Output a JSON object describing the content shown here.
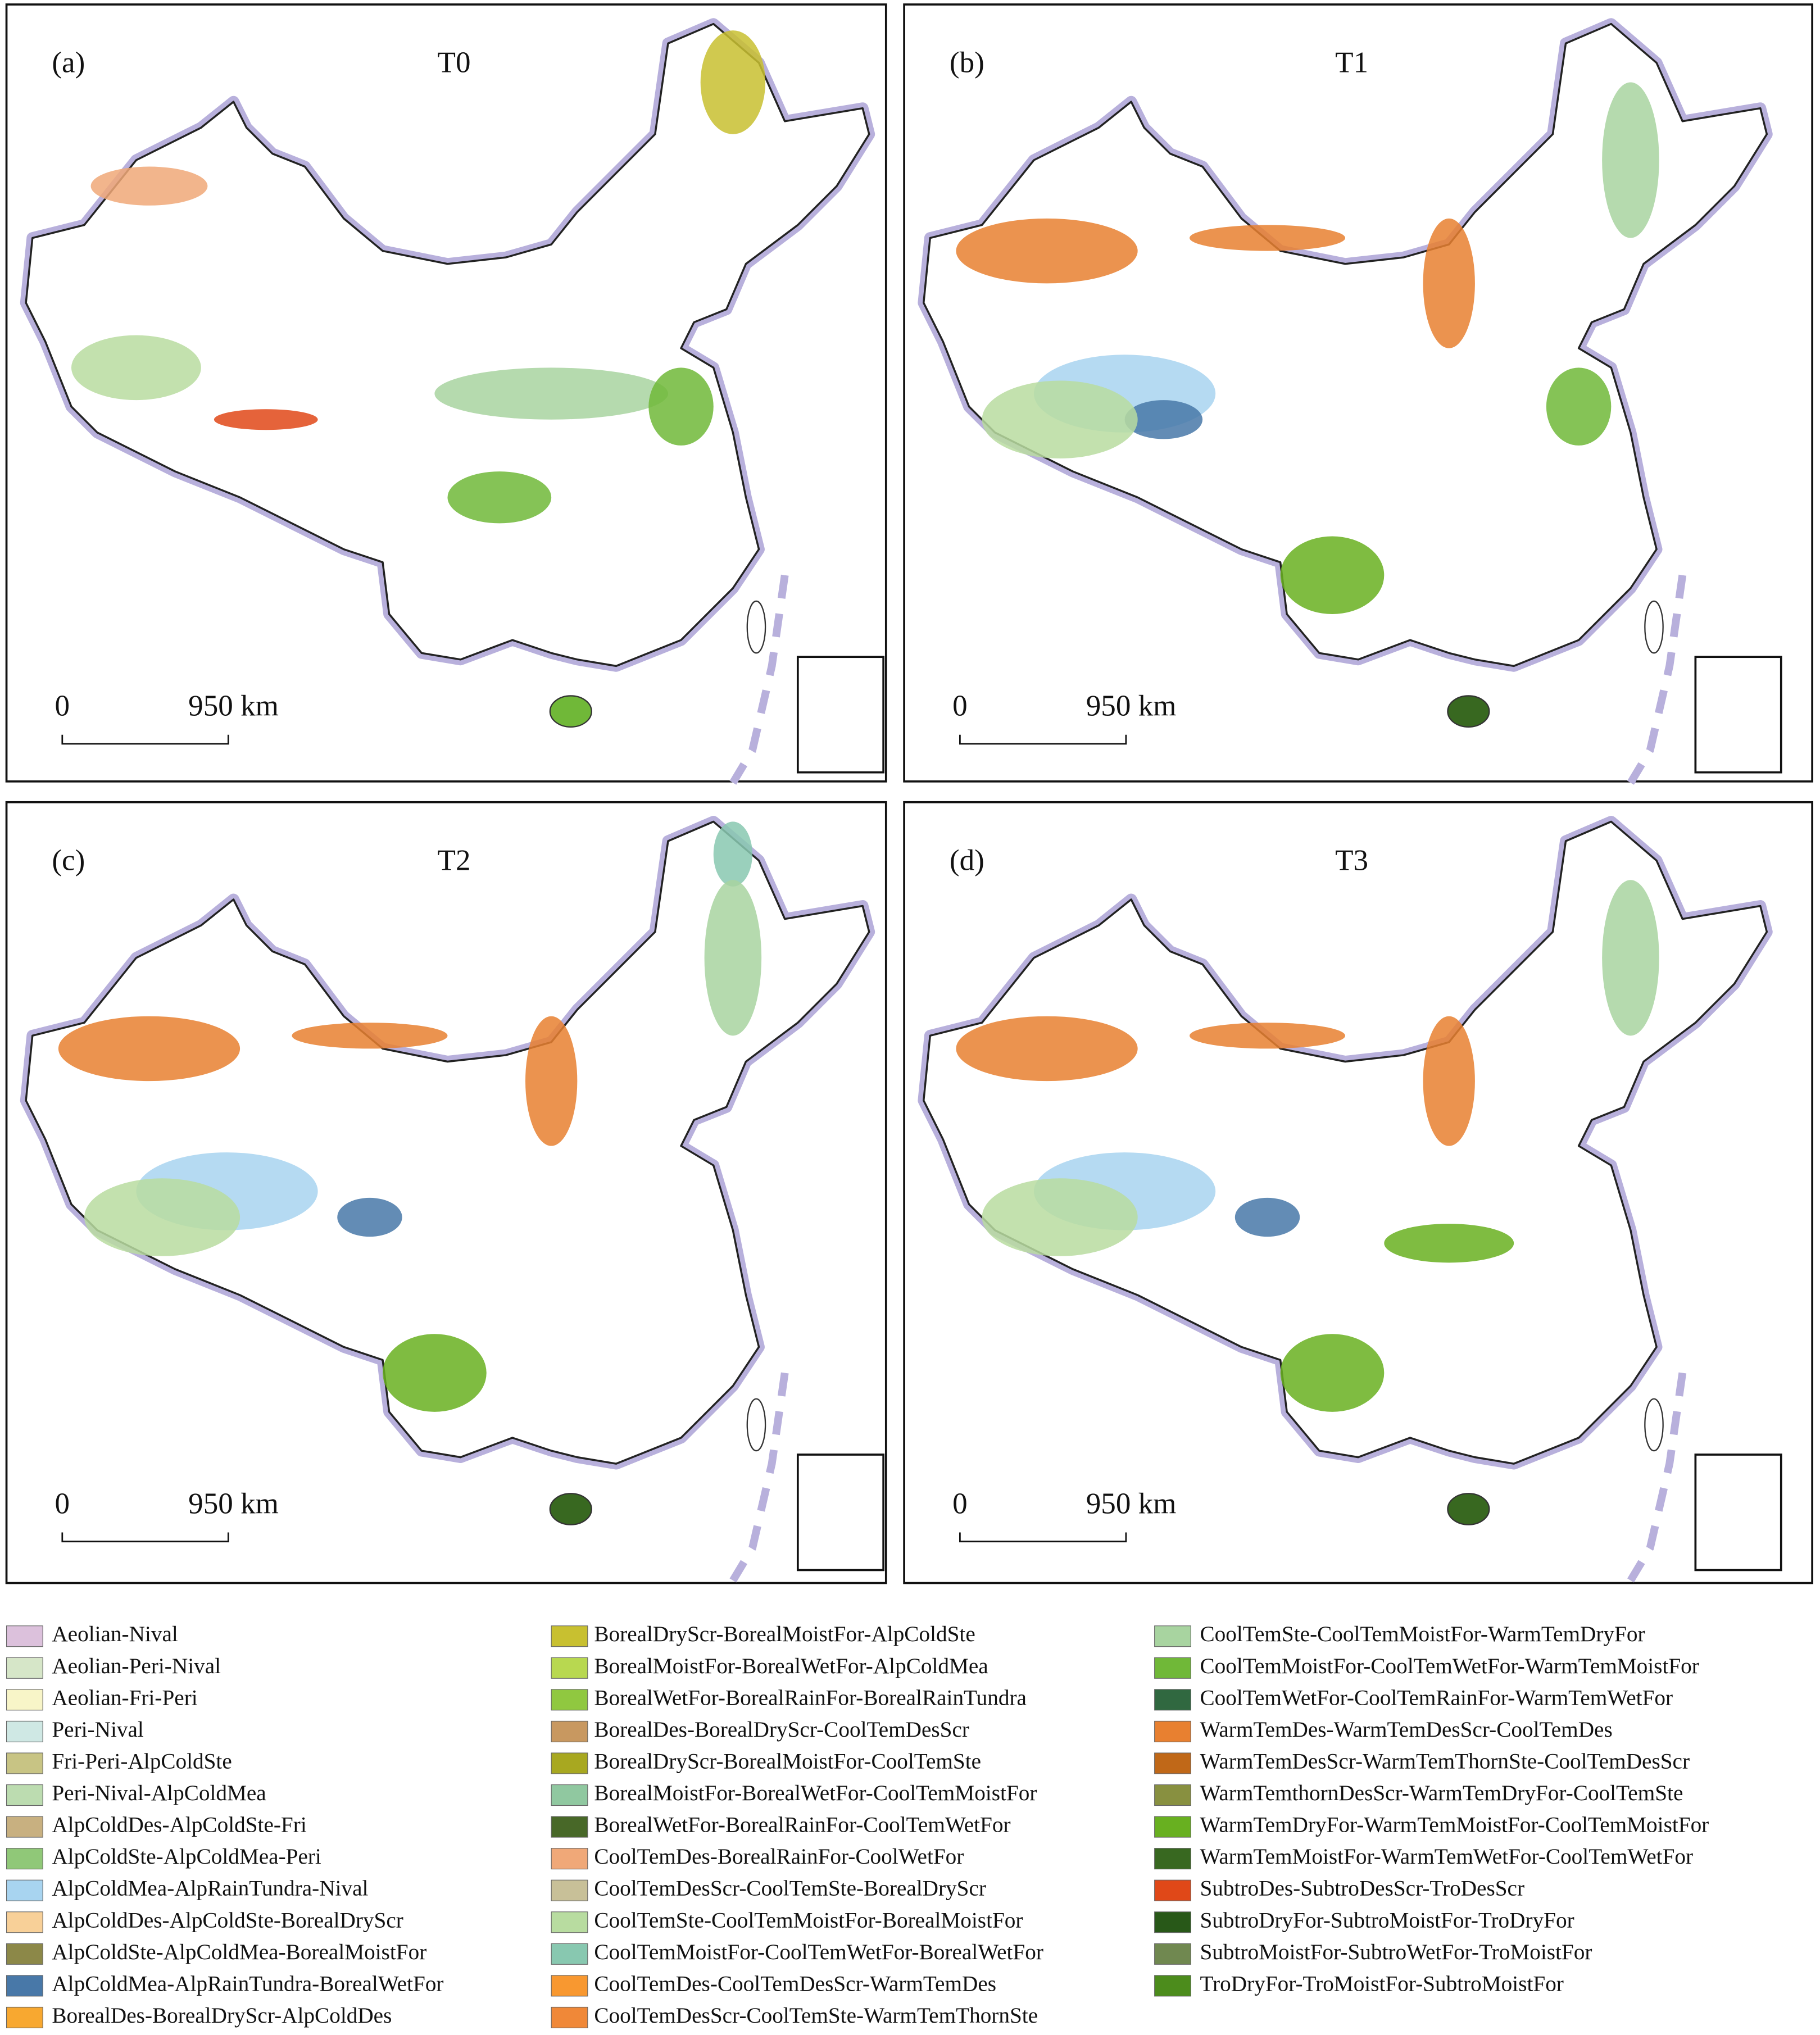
{
  "panels": [
    {
      "label": "(a)",
      "title": "T0",
      "scale_start": "0",
      "scale_end": "950 km"
    },
    {
      "label": "(b)",
      "title": "T1",
      "scale_start": "0",
      "scale_end": "950 km"
    },
    {
      "label": "(c)",
      "title": "T2",
      "scale_start": "0",
      "scale_end": "950 km"
    },
    {
      "label": "(d)",
      "title": "T3",
      "scale_start": "0",
      "scale_end": "950 km"
    }
  ],
  "legend": [
    {
      "label": "Aeolian-Nival",
      "color": "#dcc1dc"
    },
    {
      "label": "Aeolian-Peri-Nival",
      "color": "#d6e6c8"
    },
    {
      "label": "Aeolian-Fri-Peri",
      "color": "#f8f5c8"
    },
    {
      "label": "Peri-Nival",
      "color": "#cfe8e4"
    },
    {
      "label": "Fri-Peri-AlpColdSte",
      "color": "#c8c484"
    },
    {
      "label": "Peri-Nival-AlpColdMea",
      "color": "#bcdcb0"
    },
    {
      "label": "AlpColdDes-AlpColdSte-Fri",
      "color": "#c8b080"
    },
    {
      "label": "AlpColdSte-AlpColdMea-Peri",
      "color": "#90c878"
    },
    {
      "label": "AlpColdMea-AlpRainTundra-Nival",
      "color": "#a8d4f0"
    },
    {
      "label": "AlpColdDes-AlpColdSte-BorealDryScr",
      "color": "#f8d098"
    },
    {
      "label": "AlpColdSte-AlpColdMea-BorealMoistFor",
      "color": "#8c8848"
    },
    {
      "label": "AlpColdMea-AlpRainTundra-BorealWetFor",
      "color": "#4878a8"
    },
    {
      "label": "BorealDes-BorealDryScr-AlpColdDes",
      "color": "#f8a830"
    },
    {
      "label": "BorealDryScr-BorealMoistFor-AlpColdSte",
      "color": "#c8c030"
    },
    {
      "label": "BorealMoistFor-BorealWetFor-AlpColdMea",
      "color": "#b8d850"
    },
    {
      "label": "BorealWetFor-BorealRainFor-BorealRainTundra",
      "color": "#90c840"
    },
    {
      "label": "BorealDes-BorealDryScr-CoolTemDesScr",
      "color": "#c89860"
    },
    {
      "label": "BorealDryScr-BorealMoistFor-CoolTemSte",
      "color": "#a8a820"
    },
    {
      "label": "BorealMoistFor-BorealWetFor-CoolTemMoistFor",
      "color": "#90c8a0"
    },
    {
      "label": "BorealWetFor-BorealRainFor-CoolTemWetFor",
      "color": "#486828"
    },
    {
      "label": "CoolTemDes-BorealRainFor-CoolWetFor",
      "color": "#f0a878"
    },
    {
      "label": "CoolTemDesScr-CoolTemSte-BorealDryScr",
      "color": "#c8c098"
    },
    {
      "label": "CoolTemSte-CoolTemMoistFor-BorealMoistFor",
      "color": "#b8dca0"
    },
    {
      "label": "CoolTemMoistFor-CoolTemWetFor-BorealWetFor",
      "color": "#88c8b0"
    },
    {
      "label": "CoolTemDes-CoolTemDesScr-WarmTemDes",
      "color": "#f89830"
    },
    {
      "label": "CoolTemDesScr-CoolTemSte-WarmTemThornSte",
      "color": "#f08838"
    },
    {
      "label": "CoolTemSte-CoolTemMoistFor-WarmTemDryFor",
      "color": "#a8d4a0"
    },
    {
      "label": "CoolTemMoistFor-CoolTemWetFor-WarmTemMoistFor",
      "color": "#70b838"
    },
    {
      "label": "CoolTemWetFor-CoolTemRainFor-WarmTemWetFor",
      "color": "#306840"
    },
    {
      "label": "WarmTemDes-WarmTemDesScr-CoolTemDes",
      "color": "#e88030"
    },
    {
      "label": "WarmTemDesScr-WarmTemThornSte-CoolTemDesScr",
      "color": "#c06818"
    },
    {
      "label": "WarmTemthornDesScr-WarmTemDryFor-CoolTemSte",
      "color": "#889040"
    },
    {
      "label": "WarmTemDryFor-WarmTemMoistFor-CoolTemMoistFor",
      "color": "#68b020"
    },
    {
      "label": "WarmTemMoistFor-WarmTemWetFor-CoolTemWetFor",
      "color": "#386820"
    },
    {
      "label": "SubtroDes-SubtroDesScr-TroDesScr",
      "color": "#e04818"
    },
    {
      "label": "SubtroDryFor-SubtroMoistFor-TroDryFor",
      "color": "#285818"
    },
    {
      "label": "SubtroMoistFor-SubtroWetFor-TroMoistFor",
      "color": "#708850"
    },
    {
      "label": "TroDryFor-TroMoistFor-SubtroMoistFor",
      "color": "#4c8c1c"
    }
  ]
}
